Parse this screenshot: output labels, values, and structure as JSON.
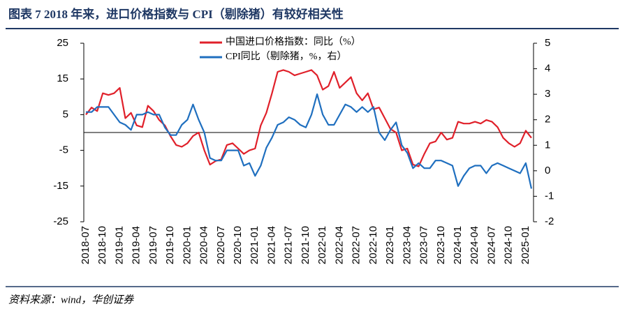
{
  "chart_data": {
    "type": "line",
    "title": "图表 7   2018 年来，进口价格指数与 CPI（剔除猪）有较好相关性",
    "source": "资料来源：wind，华创证券",
    "categories": [
      "2018-07",
      null,
      null,
      "2018-10",
      null,
      null,
      "2019-01",
      null,
      null,
      "2019-04",
      null,
      null,
      "2019-07",
      null,
      null,
      "2019-10",
      null,
      null,
      "2020-01",
      null,
      null,
      "2020-04",
      null,
      null,
      "2020-07",
      null,
      null,
      "2020-10",
      null,
      null,
      "2021-01",
      null,
      null,
      "2021-04",
      null,
      null,
      "2021-07",
      null,
      null,
      "2021-10",
      null,
      null,
      "2022-01",
      null,
      null,
      "2022-04",
      null,
      null,
      "2022-07",
      null,
      null,
      "2022-10",
      null,
      null,
      "2023-01",
      null,
      null,
      "2023-04",
      null,
      null,
      "2023-07",
      null,
      null,
      "2023-10",
      null,
      null,
      "2024-01",
      null,
      null,
      "2024-04",
      null,
      null,
      "2024-07",
      null,
      null,
      "2024-10",
      null,
      null,
      "2025-01",
      null
    ],
    "series": [
      {
        "name": "中国进口价格指数：同比（%）",
        "color": "#e0202a",
        "axis": "y",
        "values": [
          5,
          7,
          6,
          11,
          10.5,
          11,
          12.5,
          4,
          5.5,
          2,
          1.5,
          7.5,
          6,
          3.5,
          2,
          -1,
          -3.5,
          -4,
          -3,
          -1,
          0,
          -5,
          -9,
          -8,
          -7.5,
          -3.5,
          -3,
          -4.5,
          -6,
          -5,
          -4.5,
          2,
          5.5,
          11,
          17,
          17.5,
          17,
          16,
          16.5,
          17,
          17.5,
          16,
          12,
          13,
          17,
          12.5,
          14,
          15.5,
          11,
          9,
          11,
          6.5,
          7,
          4,
          1,
          0,
          -5,
          -4.5,
          -9,
          -9.5,
          -6,
          -3,
          -2.5,
          0,
          -2,
          -1.5,
          3,
          2.5,
          2.5,
          3,
          2.5,
          3.5,
          3,
          1.5,
          -1.5,
          -3,
          -4,
          -3,
          0.5,
          -1.5
        ]
      },
      {
        "name": "CPI同比（剔除猪，%，右）",
        "color": "#1f6fbf",
        "axis": "y2",
        "values": [
          2.3,
          2.3,
          2.5,
          2.5,
          2.5,
          2.2,
          1.9,
          1.8,
          1.6,
          2.2,
          2.2,
          2.3,
          2.2,
          2.2,
          1.7,
          1.4,
          1.4,
          1.8,
          2.0,
          2.6,
          2.0,
          1.5,
          0.5,
          0.4,
          0.4,
          0.8,
          0.8,
          0.8,
          0.2,
          0.3,
          -0.2,
          0.2,
          0.9,
          1.3,
          1.8,
          1.9,
          2.1,
          2.0,
          1.8,
          1.7,
          2.2,
          3.0,
          2.2,
          1.8,
          1.8,
          2.2,
          2.6,
          2.5,
          2.3,
          2.5,
          2.3,
          2.5,
          1.5,
          1.2,
          1.6,
          1.9,
          1.0,
          0.7,
          0.1,
          0.3,
          0.1,
          0.1,
          0.4,
          0.4,
          0.3,
          0.2,
          -0.6,
          -0.2,
          0.1,
          0.2,
          0.2,
          -0.1,
          0.2,
          0.3,
          0.2,
          0.1,
          0.0,
          -0.1,
          0.3,
          -0.7
        ]
      }
    ],
    "ylim": [
      -25,
      25
    ],
    "yticks": [
      -25,
      -15,
      -5,
      5,
      15,
      25
    ],
    "y2lim": [
      -2,
      5
    ],
    "y2ticks": [
      -2,
      -1,
      0,
      1,
      2,
      3,
      4,
      5
    ],
    "legend": "top"
  }
}
